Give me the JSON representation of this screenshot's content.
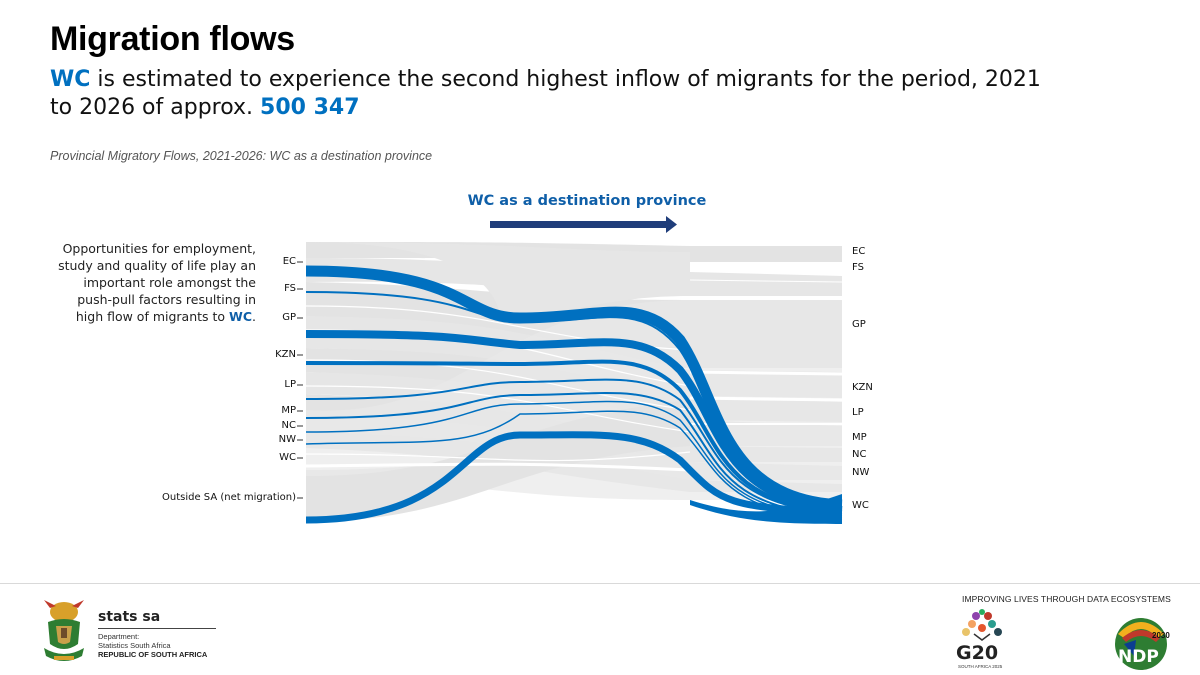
{
  "title": "Migration flows",
  "headline": {
    "part1_highlight": "WC",
    "part2": " is estimated to experience the second highest inflow of migrants for the period, 2021 to 2026 of approx. ",
    "part3_highlight": "500 347"
  },
  "caption": "Provincial Migratory Flows, 2021-2026: WC as a destination province",
  "arrow_label": "WC as a destination province",
  "side_note": {
    "text": "Opportunities for employment, study and quality of life play an important role amongst the push-pull factors resulting in high flow of migrants to ",
    "highlight": "WC",
    "end": "."
  },
  "sankey": {
    "left_labels": [
      "EC",
      "FS",
      "GP",
      "KZN",
      "LP",
      "MP",
      "NC",
      "NW",
      "WC",
      "Outside SA (net migration)"
    ],
    "right_labels": [
      "EC",
      "FS",
      "GP",
      "KZN",
      "LP",
      "MP",
      "NC",
      "NW",
      "WC"
    ],
    "highlight_destination": "WC",
    "colors": {
      "highlight": "#0070c0",
      "background_flow": "#e3e3e3",
      "arrow": "#1f3d7a"
    }
  },
  "footer": {
    "brand": "stats sa",
    "department": "Department:",
    "department_name": "Statistics South Africa",
    "country": "REPUBLIC OF SOUTH AFRICA",
    "tagline": "IMPROVING LIVES THROUGH DATA ECOSYSTEMS",
    "g20": "G20",
    "g20_sub": "SOUTH AFRICA 2025",
    "ndp": "NDP",
    "ndp_year": "2030"
  }
}
